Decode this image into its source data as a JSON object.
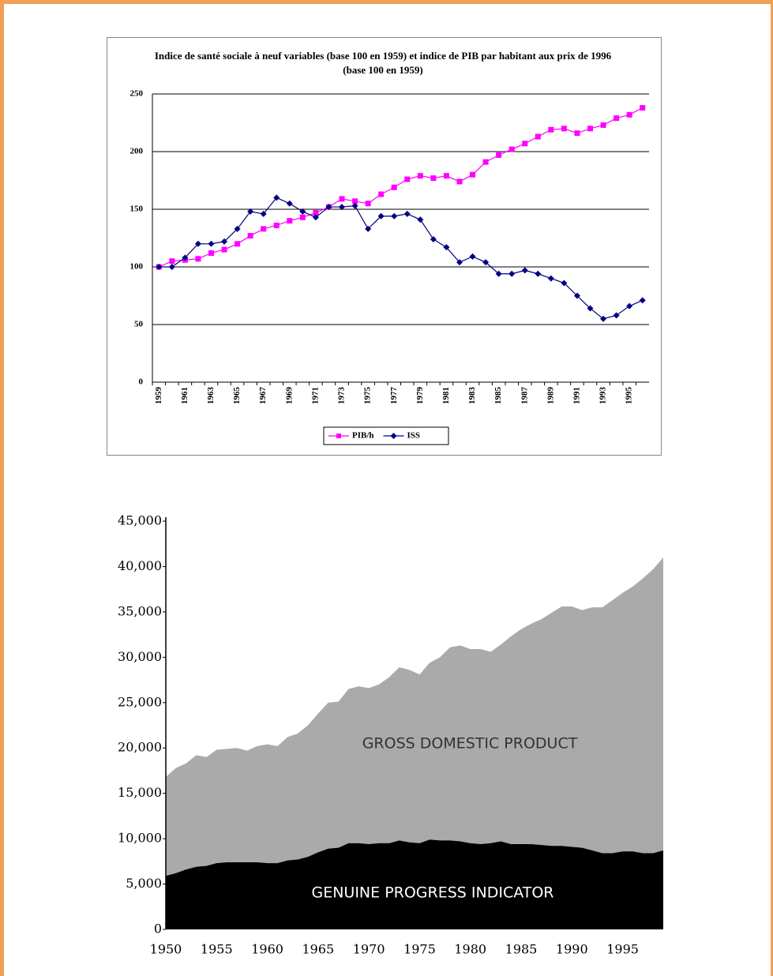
{
  "chart_data": [
    {
      "type": "line",
      "title": "Indice de santé sociale à neuf variables (base 100 en 1959) et indice de PIB par habitant aux prix de 1996 (base 100 en 1959)",
      "categories": [
        "1959",
        null,
        "1961",
        null,
        "1963",
        null,
        "1965",
        null,
        "1967",
        null,
        "1969",
        null,
        "1971",
        null,
        "1973",
        null,
        "1975",
        null,
        "1977",
        null,
        "1979",
        null,
        "1981",
        null,
        "1983",
        null,
        "1985",
        null,
        "1987",
        null,
        "1989",
        null,
        "1991",
        null,
        "1993",
        null,
        "1995",
        null
      ],
      "series": [
        {
          "name": "PIB/h",
          "color": "#ff00ff",
          "marker": "square",
          "values": [
            100,
            105,
            106,
            107,
            112,
            115,
            120,
            127,
            133,
            136,
            140,
            143,
            147,
            152,
            159,
            157,
            155,
            163,
            169,
            176,
            179,
            177,
            179,
            174,
            180,
            191,
            197,
            202,
            207,
            213,
            219,
            220,
            216,
            220,
            223,
            229,
            232,
            238
          ]
        },
        {
          "name": "ISS",
          "color": "#000080",
          "marker": "diamond",
          "values": [
            100,
            100,
            108,
            120,
            120,
            122,
            133,
            148,
            146,
            160,
            155,
            148,
            143,
            152,
            152,
            153,
            133,
            144,
            144,
            146,
            141,
            124,
            117,
            104,
            109,
            104,
            94,
            94,
            97,
            94,
            90,
            86,
            75,
            64,
            55,
            58,
            66,
            71
          ]
        }
      ],
      "ylim": [
        0,
        250
      ],
      "yticks": [
        0,
        50,
        100,
        150,
        200,
        250
      ],
      "grid": true,
      "legend": "bottom"
    },
    {
      "type": "area",
      "x": [
        1950,
        1951,
        1952,
        1953,
        1954,
        1955,
        1956,
        1957,
        1958,
        1959,
        1960,
        1961,
        1962,
        1963,
        1964,
        1965,
        1966,
        1967,
        1968,
        1969,
        1970,
        1971,
        1972,
        1973,
        1974,
        1975,
        1976,
        1977,
        1978,
        1979,
        1980,
        1981,
        1982,
        1983,
        1984,
        1985,
        1986,
        1987,
        1988,
        1989,
        1990,
        1991,
        1992,
        1993,
        1994,
        1995,
        1996,
        1997,
        1998,
        1999
      ],
      "series": [
        {
          "name": "GROSS DOMESTIC PRODUCT",
          "color": "#aaaaaa",
          "text_color": "#333333",
          "values": [
            16800,
            17800,
            18300,
            19200,
            19000,
            19800,
            19900,
            20000,
            19700,
            20200,
            20400,
            20200,
            21200,
            21600,
            22500,
            23800,
            25000,
            25100,
            26500,
            26800,
            26600,
            27000,
            27800,
            28900,
            28600,
            28100,
            29400,
            30000,
            31100,
            31300,
            30900,
            30900,
            30600,
            31400,
            32300,
            33100,
            33700,
            34200,
            34900,
            35600,
            35600,
            35200,
            35500,
            35500,
            36300,
            37100,
            37800,
            38700,
            39700,
            41000
          ]
        },
        {
          "name": "GENUINE PROGRESS INDICATOR",
          "color": "#000000",
          "text_color": "#ffffff",
          "values": [
            5900,
            6200,
            6600,
            6900,
            7000,
            7300,
            7400,
            7400,
            7400,
            7400,
            7300,
            7300,
            7600,
            7700,
            8000,
            8500,
            8900,
            9000,
            9500,
            9500,
            9400,
            9500,
            9500,
            9800,
            9600,
            9500,
            9900,
            9800,
            9800,
            9700,
            9500,
            9400,
            9500,
            9700,
            9400,
            9400,
            9400,
            9300,
            9200,
            9200,
            9100,
            9000,
            8700,
            8400,
            8400,
            8600,
            8600,
            8400,
            8400,
            8700
          ]
        }
      ],
      "xlim": [
        1950,
        1999
      ],
      "xticks": [
        1950,
        1955,
        1960,
        1965,
        1970,
        1975,
        1980,
        1985,
        1990,
        1995
      ],
      "ylim": [
        0,
        45000
      ],
      "yticks": [
        0,
        {
          "value": 5000,
          "label": "5,000"
        },
        {
          "value": 10000,
          "label": "10,000"
        },
        {
          "value": 15000,
          "label": "15,000"
        },
        {
          "value": 20000,
          "label": "20,000"
        },
        {
          "value": 25000,
          "label": "25,000"
        },
        {
          "value": 30000,
          "label": "30,000"
        },
        {
          "value": 35000,
          "label": "35,000"
        },
        {
          "value": 40000,
          "label": "40,000"
        },
        {
          "value": 45000,
          "label": "45,000"
        }
      ]
    }
  ]
}
